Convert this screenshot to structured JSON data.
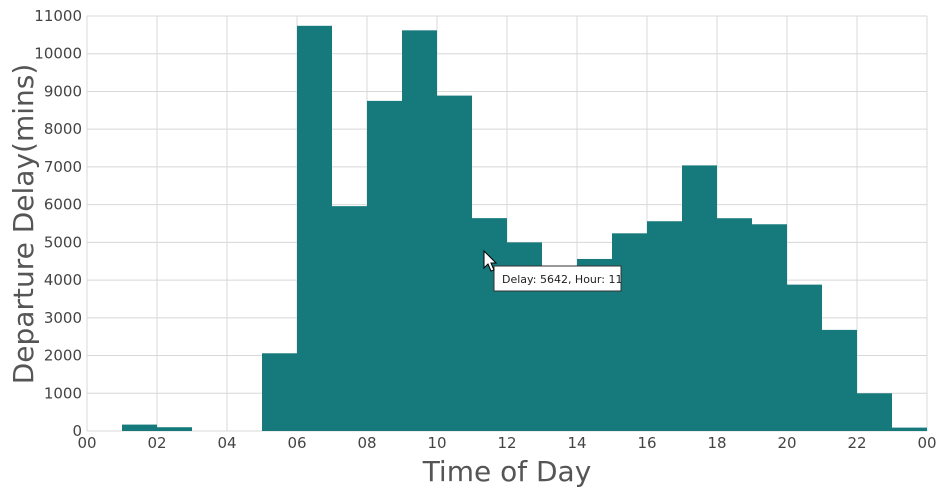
{
  "chart_data": {
    "type": "bar",
    "title": "",
    "xlabel": "Time of Day",
    "ylabel": "Departure Delay(mins)",
    "x_tick_labels": [
      "00",
      "02",
      "04",
      "06",
      "08",
      "10",
      "12",
      "14",
      "16",
      "18",
      "20",
      "22",
      "00"
    ],
    "y_ticks": [
      0,
      1000,
      2000,
      3000,
      4000,
      5000,
      6000,
      7000,
      8000,
      9000,
      10000,
      11000
    ],
    "xlim": [
      0,
      24
    ],
    "ylim": [
      0,
      11000
    ],
    "grid": true,
    "bar_color": "#167a7d",
    "hours": [
      0,
      1,
      2,
      3,
      4,
      5,
      6,
      7,
      8,
      9,
      10,
      11,
      12,
      13,
      14,
      15,
      16,
      17,
      18,
      19,
      20,
      21,
      22,
      23
    ],
    "values": [
      0,
      170,
      100,
      0,
      0,
      2060,
      10740,
      5960,
      8750,
      10620,
      8890,
      5642,
      5000,
      4330,
      4560,
      5240,
      5560,
      7040,
      5640,
      5480,
      3880,
      2680,
      1000,
      90
    ]
  },
  "tooltip": {
    "text": "Delay: 5642, Hour: 11"
  }
}
